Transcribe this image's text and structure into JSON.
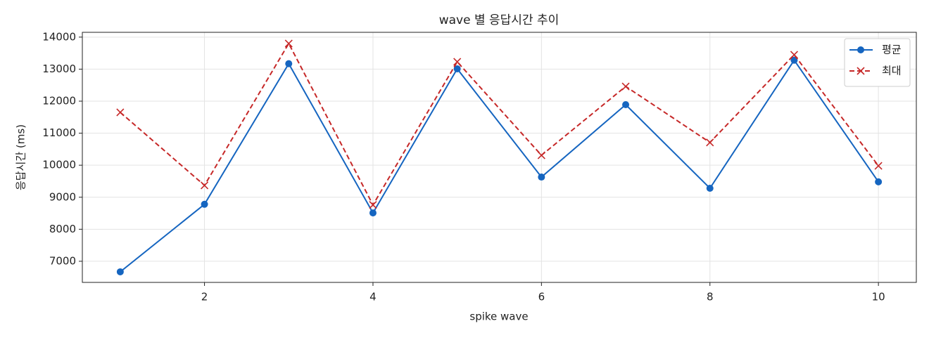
{
  "chart_data": {
    "type": "line",
    "title": "wave 별 응답시간 추이",
    "x_label": "spike wave",
    "y_label": "응답시간 (ms)",
    "x": [
      1,
      2,
      3,
      4,
      5,
      6,
      7,
      8,
      9,
      10
    ],
    "series": [
      {
        "name": "평균",
        "color": "#1565c0",
        "marker": "o",
        "linestyle": "solid",
        "values": [
          6670,
          8780,
          13170,
          8510,
          13010,
          9630,
          11890,
          9280,
          13280,
          9480
        ]
      },
      {
        "name": "최대",
        "color": "#c62828",
        "marker": "x",
        "linestyle": "dashed",
        "values": [
          11650,
          9370,
          13800,
          8760,
          13230,
          10310,
          12460,
          10710,
          13450,
          9980
        ]
      }
    ],
    "xlim": [
      0.55,
      10.45
    ],
    "xticks": [
      2,
      4,
      6,
      8,
      10
    ],
    "ylim": [
      6340,
      14150
    ],
    "yticks": [
      7000,
      8000,
      9000,
      10000,
      11000,
      12000,
      13000,
      14000
    ],
    "grid": true,
    "legend": "upper right"
  }
}
